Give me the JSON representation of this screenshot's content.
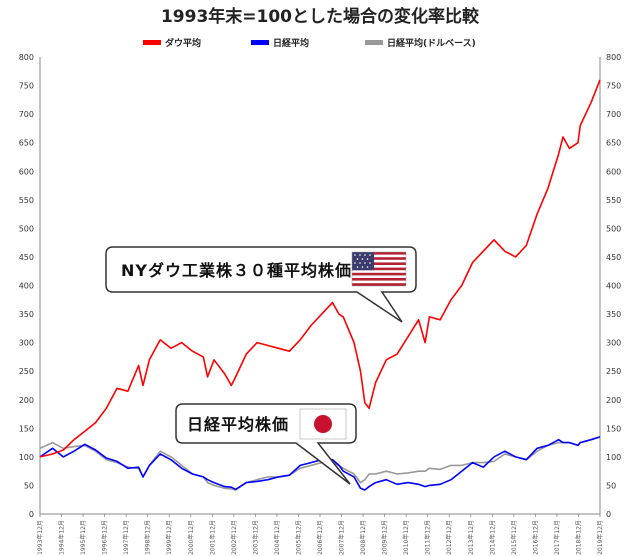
{
  "chart_data": {
    "type": "line",
    "title": "1993年末=100とした場合の変化率比較",
    "ylim": [
      0,
      800
    ],
    "y_ticks": [
      0,
      50,
      100,
      150,
      200,
      250,
      300,
      350,
      400,
      450,
      500,
      550,
      600,
      650,
      700,
      750,
      800
    ],
    "x_tick_labels": [
      "1993年12月",
      "1994年12月",
      "1995年12月",
      "1996年12月",
      "1997年12月",
      "1998年12月",
      "1999年12月",
      "2000年12月",
      "2001年12月",
      "2002年12月",
      "2003年12月",
      "2004年12月",
      "2005年12月",
      "2006年12月",
      "2007年12月",
      "2008年12月",
      "2009年12月",
      "2010年12月",
      "2011年12月",
      "2012年12月",
      "2013年12月",
      "2014年12月",
      "2015年12月",
      "2016年12月",
      "2017年12月",
      "2018年12月",
      "2019年12月"
    ],
    "x": [
      1993.92,
      1994.5,
      1995.0,
      1995.5,
      1996.0,
      1996.5,
      1997.0,
      1997.5,
      1998.0,
      1998.5,
      1998.7,
      1999.0,
      1999.5,
      2000.0,
      2000.5,
      2001.0,
      2001.5,
      2001.7,
      2002.0,
      2002.5,
      2002.8,
      2003.0,
      2003.5,
      2004.0,
      2004.5,
      2005.0,
      2005.5,
      2006.0,
      2006.5,
      2007.0,
      2007.5,
      2007.8,
      2008.0,
      2008.5,
      2008.8,
      2009.0,
      2009.2,
      2009.5,
      2010.0,
      2010.5,
      2011.0,
      2011.5,
      2011.8,
      2012.0,
      2012.5,
      2013.0,
      2013.5,
      2014.0,
      2014.5,
      2015.0,
      2015.5,
      2016.0,
      2016.5,
      2017.0,
      2017.5,
      2018.0,
      2018.2,
      2018.5,
      2018.9,
      2019.0,
      2019.5,
      2019.92
    ],
    "series": [
      {
        "name": "ダウ平均",
        "color": "#ff0000",
        "values": [
          100,
          105,
          112,
          130,
          145,
          160,
          185,
          220,
          215,
          260,
          225,
          270,
          305,
          290,
          300,
          285,
          275,
          240,
          270,
          245,
          225,
          240,
          280,
          300,
          295,
          290,
          285,
          305,
          330,
          350,
          370,
          350,
          345,
          300,
          250,
          195,
          185,
          230,
          270,
          280,
          310,
          340,
          300,
          345,
          340,
          375,
          400,
          440,
          460,
          480,
          460,
          450,
          470,
          525,
          570,
          630,
          660,
          640,
          650,
          680,
          720,
          760
        ]
      },
      {
        "name": "日経平均",
        "color": "#0000ff",
        "values": [
          100,
          115,
          100,
          110,
          122,
          112,
          98,
          92,
          80,
          82,
          65,
          85,
          105,
          95,
          80,
          70,
          65,
          60,
          55,
          48,
          47,
          43,
          55,
          57,
          60,
          65,
          68,
          85,
          90,
          95,
          95,
          85,
          75,
          65,
          45,
          42,
          48,
          55,
          60,
          52,
          55,
          52,
          48,
          50,
          52,
          60,
          75,
          90,
          82,
          100,
          110,
          100,
          95,
          115,
          120,
          130,
          125,
          125,
          120,
          125,
          130,
          135
        ]
      },
      {
        "name": "日経平均(ドルベース)",
        "color": "#999999",
        "values": [
          115,
          125,
          115,
          118,
          120,
          110,
          95,
          90,
          82,
          80,
          65,
          85,
          110,
          100,
          85,
          70,
          65,
          55,
          50,
          45,
          44,
          42,
          55,
          60,
          65,
          65,
          68,
          80,
          85,
          90,
          90,
          85,
          80,
          70,
          55,
          60,
          70,
          70,
          75,
          70,
          72,
          75,
          75,
          80,
          78,
          85,
          85,
          90,
          90,
          92,
          105,
          100,
          95,
          110,
          120,
          125,
          125,
          125,
          120,
          125,
          130,
          135
        ]
      }
    ],
    "legend_position": "top-center",
    "annotations": [
      {
        "text": "NYダウ工業株３０種平均株価",
        "flag": "us-flag"
      },
      {
        "text": "日経平均株価",
        "flag": "japan-flag"
      }
    ],
    "grid": false
  }
}
